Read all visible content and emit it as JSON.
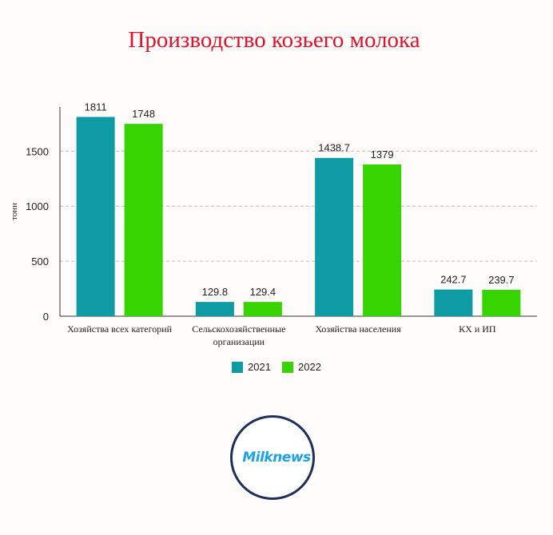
{
  "chart_data": {
    "type": "bar",
    "title": "Производство козьего молока",
    "ylabel": "тонн",
    "ylim": [
      0,
      1900
    ],
    "yticks": [
      0,
      500,
      1000,
      1500
    ],
    "grid": true,
    "legend_position": "bottom",
    "categories": [
      [
        "Хозяйства всех категорий"
      ],
      [
        "Сельскохозяйственные",
        "организации"
      ],
      [
        "Хозяйства населения"
      ],
      [
        "КХ и ИП"
      ]
    ],
    "series": [
      {
        "name": "2021",
        "color": "#0e9ba3",
        "values": [
          1811,
          129.8,
          1438.7,
          242.7
        ]
      },
      {
        "name": "2022",
        "color": "#36d400",
        "values": [
          1748,
          129.4,
          1379,
          239.7
        ]
      }
    ]
  },
  "logo": {
    "text": "Milknews",
    "border_color": "#1d2f5a",
    "text_color": "#1aa3e8"
  }
}
